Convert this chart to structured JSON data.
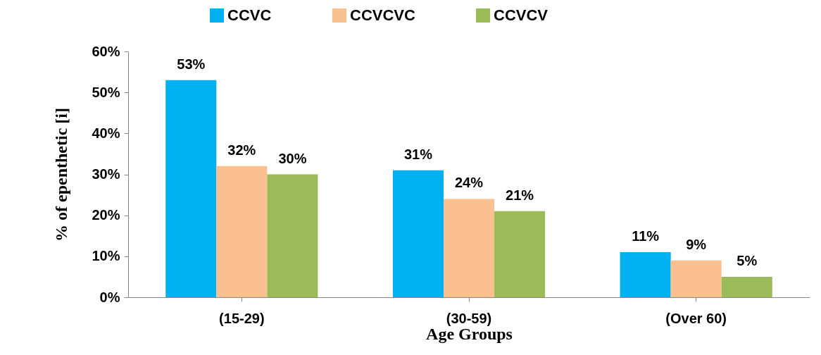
{
  "chart_data": {
    "type": "bar",
    "xlabel": "Age Groups",
    "ylabel": "% of epenthetic [i]",
    "categories": [
      "(15-29)",
      "(30-59)",
      "(Over 60)"
    ],
    "series": [
      {
        "name": "CCVC",
        "color": "#00b0f0",
        "values": [
          53,
          31,
          11
        ],
        "value_labels": [
          "53%",
          "31%",
          "11%"
        ]
      },
      {
        "name": "CCVCVC",
        "color": "#fac090",
        "values": [
          32,
          24,
          9
        ],
        "value_labels": [
          "32%",
          "24%",
          "9%"
        ]
      },
      {
        "name": "CCVCV",
        "color": "#9bbb59",
        "values": [
          30,
          21,
          5
        ],
        "value_labels": [
          "30%",
          "21%",
          "5%"
        ]
      }
    ],
    "ylim": [
      0,
      60
    ],
    "yticks": [
      {
        "value": 0,
        "label": "0%"
      },
      {
        "value": 10,
        "label": "10%"
      },
      {
        "value": 20,
        "label": "20%"
      },
      {
        "value": 30,
        "label": "30%"
      },
      {
        "value": 40,
        "label": "40%"
      },
      {
        "value": 50,
        "label": "50%"
      },
      {
        "value": 60,
        "label": "60%"
      }
    ],
    "grid": false,
    "legend": "top"
  }
}
